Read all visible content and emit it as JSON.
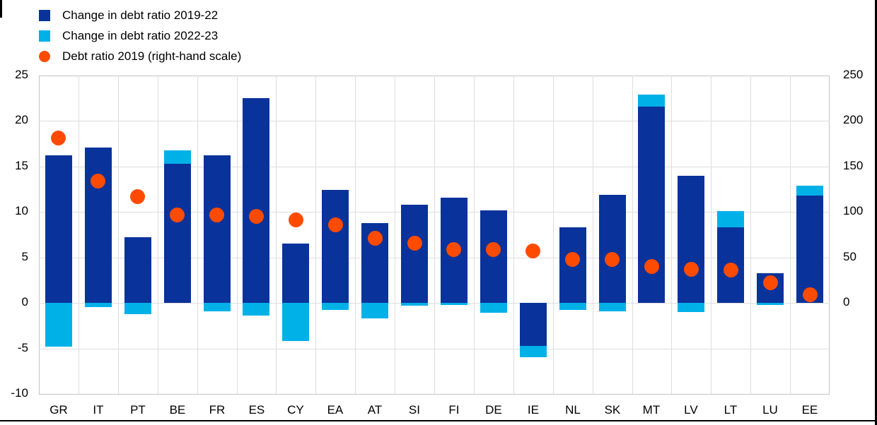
{
  "legend": [
    {
      "label": "Change in debt ratio 2019-22",
      "shape": "square",
      "color": "#0a329b"
    },
    {
      "label": "Change in debt ratio 2022-23",
      "shape": "square",
      "color": "#00b1e8"
    },
    {
      "label": "Debt ratio 2019 (right-hand scale)",
      "shape": "circle",
      "color": "#ff4b00"
    }
  ],
  "colors": {
    "dark_blue": "#0a329b",
    "light_blue": "#00b1e8",
    "orange": "#ff4b00",
    "gridline": "#dedede",
    "plot_border": "#c3c3c3",
    "frame_edge": "#000000"
  },
  "chart_data": {
    "type": "bar",
    "stacked": true,
    "title": "",
    "xlabel": "",
    "ylabel": "",
    "grid": true,
    "legend_position": "top-left",
    "categories": [
      "GR",
      "IT",
      "PT",
      "BE",
      "FR",
      "ES",
      "CY",
      "EA",
      "AT",
      "SI",
      "FI",
      "DE",
      "IE",
      "NL",
      "SK",
      "MT",
      "LV",
      "LT",
      "LU",
      "EE"
    ],
    "series": [
      {
        "name": "Change in debt ratio 2019-22",
        "type": "bar",
        "axis": "left",
        "color": "#0a329b",
        "values": [
          16.2,
          17.1,
          7.2,
          15.3,
          16.2,
          22.5,
          6.5,
          12.4,
          8.8,
          10.8,
          11.6,
          10.2,
          -4.7,
          8.3,
          11.9,
          21.6,
          14.0,
          8.3,
          3.3,
          11.8
        ]
      },
      {
        "name": "Change in debt ratio 2022-23",
        "type": "bar",
        "axis": "left",
        "color": "#00b1e8",
        "values": [
          -4.8,
          -0.5,
          -1.2,
          1.5,
          -0.9,
          -1.4,
          -4.2,
          -0.8,
          -1.7,
          -0.3,
          -0.2,
          -1.1,
          -1.3,
          -0.8,
          -0.9,
          1.3,
          -1.0,
          1.8,
          -0.2,
          1.1
        ]
      },
      {
        "name": "Debt ratio 2019 (right-hand scale)",
        "type": "point",
        "axis": "right",
        "color": "#ff4b00",
        "values": [
          181,
          134,
          117,
          97,
          97,
          95,
          91,
          86,
          71,
          66,
          59,
          59,
          57,
          48,
          48,
          40,
          37,
          36,
          22,
          9
        ]
      }
    ],
    "left_axis": {
      "min": -10,
      "max": 25,
      "ticks": [
        25,
        20,
        15,
        10,
        5,
        0,
        -5,
        -10
      ]
    },
    "right_axis": {
      "min": -100,
      "max": 250,
      "ticks": [
        250,
        200,
        150,
        100,
        50,
        0
      ]
    }
  }
}
